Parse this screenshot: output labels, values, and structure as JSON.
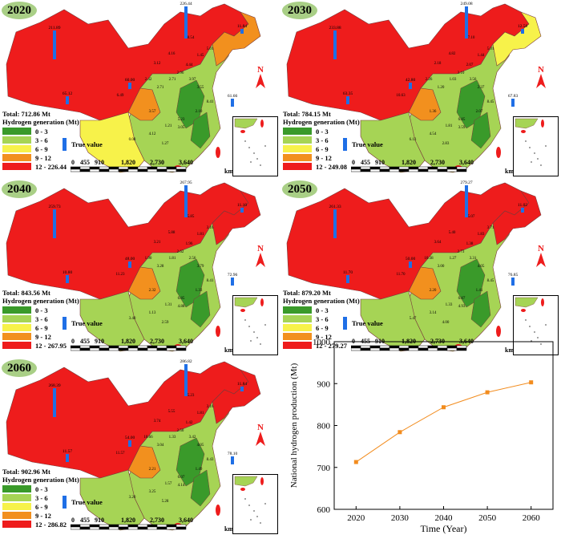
{
  "panels": [
    {
      "year": "2020",
      "total": "Total: 712.86 Mt",
      "legend_max": "12 - 226.44",
      "bar_values": [
        "211.89",
        "226.44",
        "61.66",
        "65.12",
        "60.00",
        "11.84"
      ],
      "region_labels": [
        "8.54",
        "5.01",
        "1.45",
        "4.16",
        "3.12",
        "2.96",
        "3.97",
        "2.71",
        "2.71",
        "8.41",
        "2.10",
        "1.21",
        "3.05",
        "4.12",
        "1.27",
        "6.49",
        "2.42",
        "4.44",
        "5.23",
        "3.55",
        "3.57",
        "0.08"
      ]
    },
    {
      "year": "2030",
      "total": "Total: 784.15 Mt",
      "legend_max": "12 - 249.08",
      "bar_values": [
        "233.88",
        "249.08",
        "67.83",
        "63.35",
        "42.80",
        "12.58"
      ],
      "region_labels": [
        "7.10",
        "5.01",
        "1.44",
        "4.82",
        "2.18",
        "3.10",
        "3.56",
        "1.03",
        "1.20",
        "8.45",
        "2.07",
        "1.81",
        "3.59",
        "4.54",
        "2.83",
        "10.63",
        "2.26",
        "2.07",
        "6.85",
        "2.37",
        "1.36",
        "6.13"
      ]
    },
    {
      "year": "2040",
      "total": "Total: 843.56 Mt",
      "legend_max": "12 - 267.95",
      "bar_values": [
        "259.73",
        "267.95",
        "72.96",
        "10.80",
        "48.00",
        "11.10"
      ],
      "region_labels": [
        "5.85",
        "3.16",
        "1.81",
        "5.88",
        "3.21",
        "2.62",
        "2.56",
        "1.81",
        "3.28",
        "8.41",
        "1.33",
        "1.31",
        "4.88",
        "1.13",
        "2.59",
        "11.23",
        "1.90",
        "1.96",
        "6.85",
        "3.79",
        "2.32",
        "3.40"
      ]
    },
    {
      "year": "2050",
      "total": "Total: 879.20 Mt",
      "legend_max": "12 - 279.27",
      "bar_values": [
        "261.33",
        "279.27",
        "76.85",
        "11.70",
        "50.00",
        "11.02"
      ],
      "region_labels": [
        "5.07",
        "3.71",
        "1.83",
        "5.40",
        "3.64",
        "2.73",
        "3.31",
        "1.27",
        "3.00",
        "8.45",
        "1.41",
        "1.33",
        "4.93",
        "3.14",
        "4.00",
        "11.70",
        "10.38",
        "1.38",
        "6.87",
        "4.05",
        "2.20",
        "5.47"
      ]
    },
    {
      "year": "2060",
      "total": "Total: 902.96 Mt",
      "legend_max": "12 - 286.82",
      "bar_values": [
        "268.39",
        "286.82",
        "78.10",
        "11.57",
        "54.00",
        "11.84"
      ],
      "region_labels": [
        "5.23",
        "3.16",
        "1.81",
        "5.55",
        "3.74",
        "2.50",
        "3.42",
        "1.33",
        "3.04",
        "8.43",
        "1.49",
        "1.57",
        "4.14",
        "3.25",
        "5.28",
        "11.57",
        "10.66",
        "1.42",
        "6.07",
        "4.05",
        "2.21",
        "3.20"
      ]
    }
  ],
  "legend": {
    "title": "Hydrogen generation (Mt)",
    "items": [
      {
        "label": "0 - 3",
        "color": "#3a9a2a"
      },
      {
        "label": "3 - 6",
        "color": "#a6d455"
      },
      {
        "label": "6 - 9",
        "color": "#f7f24a"
      },
      {
        "label": "9 - 12",
        "color": "#f2901e"
      },
      {
        "label": "12 - ",
        "color": "#ee1c1c"
      }
    ],
    "true_value_label": "True value",
    "true_value_color": "#1f6fe6"
  },
  "scale_bar": {
    "ticks": [
      "0",
      "455",
      "910",
      "1,820",
      "2,730",
      "3,640"
    ],
    "unit": "km"
  },
  "north_label": "N",
  "chart_data": {
    "type": "line",
    "x": [
      2020,
      2030,
      2040,
      2050,
      2060
    ],
    "series": [
      {
        "values": [
          712.86,
          784.15,
          843.56,
          879.2,
          902.96
        ],
        "color": "#f28c1e"
      }
    ],
    "xlabel": "Time (Year)",
    "ylabel": "National hydrogen production (Mt)",
    "ylim": [
      600,
      1000
    ],
    "yticks": [
      600,
      700,
      800,
      900,
      1000
    ],
    "grid": false
  }
}
